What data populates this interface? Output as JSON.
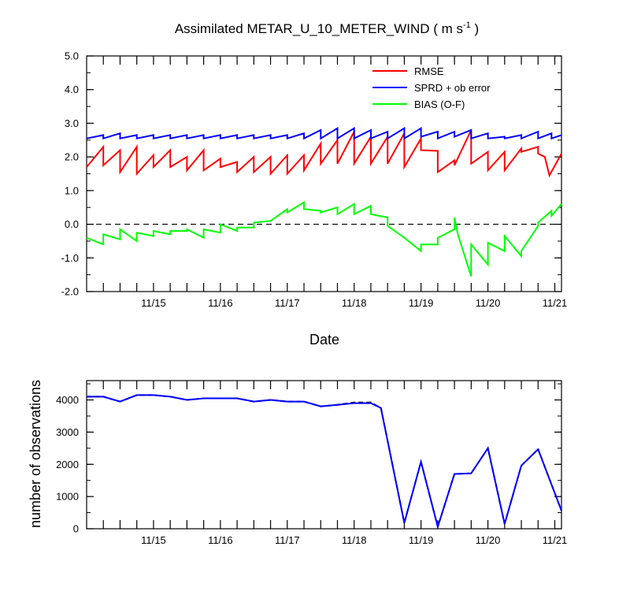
{
  "chart_data": [
    {
      "type": "line",
      "title": "Assimilated METAR_U_10_METER_WIND ( m s",
      "title_superscript": "-1",
      "title_suffix": " )",
      "xlabel": "Date",
      "ylabel": "",
      "ylim": [
        -2.0,
        5.0
      ],
      "y_ticks": [
        "5.0",
        "4.0",
        "3.0",
        "2.0",
        "1.0",
        "0.0",
        "-1.0",
        "-2.0"
      ],
      "y_tick_values": [
        5,
        4,
        3,
        2,
        1,
        0,
        -1,
        -2
      ],
      "x_ticks": [
        "11/15",
        "11/16",
        "11/17",
        "11/18",
        "11/19",
        "11/20",
        "11/21"
      ],
      "x_tick_values": [
        15,
        16,
        17,
        18,
        19,
        20,
        21
      ],
      "x_range": [
        14.0,
        21.1
      ],
      "zero_line": true,
      "legend_position": "top-right",
      "series": [
        {
          "name": "RMSE",
          "color": "#ff0000",
          "points": [
            [
              14.0,
              1.7
            ],
            [
              14.25,
              2.3
            ],
            [
              14.25,
              1.75
            ],
            [
              14.5,
              2.2
            ],
            [
              14.5,
              1.55
            ],
            [
              14.75,
              2.3
            ],
            [
              14.75,
              1.5
            ],
            [
              15.0,
              2.05
            ],
            [
              15.0,
              1.7
            ],
            [
              15.25,
              2.2
            ],
            [
              15.25,
              1.7
            ],
            [
              15.5,
              2.0
            ],
            [
              15.5,
              1.6
            ],
            [
              15.75,
              2.2
            ],
            [
              15.75,
              1.6
            ],
            [
              16.0,
              1.95
            ],
            [
              16.0,
              1.7
            ],
            [
              16.25,
              1.85
            ],
            [
              16.25,
              1.55
            ],
            [
              16.5,
              2.0
            ],
            [
              16.5,
              1.55
            ],
            [
              16.75,
              2.0
            ],
            [
              16.75,
              1.5
            ],
            [
              17.0,
              2.05
            ],
            [
              17.0,
              1.5
            ],
            [
              17.25,
              2.05
            ],
            [
              17.25,
              1.6
            ],
            [
              17.5,
              2.4
            ],
            [
              17.5,
              1.8
            ],
            [
              17.75,
              2.5
            ],
            [
              17.75,
              1.8
            ],
            [
              18.0,
              2.75
            ],
            [
              18.0,
              1.8
            ],
            [
              18.25,
              2.6
            ],
            [
              18.25,
              1.8
            ],
            [
              18.5,
              2.6
            ],
            [
              18.5,
              1.8
            ],
            [
              18.75,
              2.7
            ],
            [
              18.75,
              1.7
            ],
            [
              19.0,
              2.55
            ],
            [
              19.0,
              2.2
            ],
            [
              19.25,
              2.18
            ],
            [
              19.25,
              1.55
            ],
            [
              19.5,
              1.9
            ],
            [
              19.5,
              1.75
            ],
            [
              19.75,
              2.8
            ],
            [
              19.75,
              1.8
            ],
            [
              20.0,
              2.15
            ],
            [
              20.0,
              1.6
            ],
            [
              20.25,
              2.15
            ],
            [
              20.25,
              1.6
            ],
            [
              20.5,
              2.25
            ],
            [
              20.5,
              2.15
            ],
            [
              20.75,
              2.3
            ],
            [
              20.75,
              2.1
            ],
            [
              20.85,
              2.0
            ],
            [
              20.92,
              1.45
            ],
            [
              21.1,
              2.1
            ]
          ]
        },
        {
          "name": "SPRD + ob error",
          "color": "#0000ff",
          "points": [
            [
              14.0,
              2.55
            ],
            [
              14.25,
              2.65
            ],
            [
              14.25,
              2.55
            ],
            [
              14.5,
              2.7
            ],
            [
              14.5,
              2.55
            ],
            [
              14.75,
              2.65
            ],
            [
              14.75,
              2.55
            ],
            [
              15.0,
              2.65
            ],
            [
              15.0,
              2.55
            ],
            [
              15.25,
              2.65
            ],
            [
              15.25,
              2.55
            ],
            [
              15.5,
              2.65
            ],
            [
              15.5,
              2.55
            ],
            [
              15.75,
              2.65
            ],
            [
              15.75,
              2.55
            ],
            [
              16.0,
              2.65
            ],
            [
              16.0,
              2.55
            ],
            [
              16.25,
              2.65
            ],
            [
              16.25,
              2.55
            ],
            [
              16.5,
              2.65
            ],
            [
              16.5,
              2.55
            ],
            [
              16.75,
              2.65
            ],
            [
              16.75,
              2.55
            ],
            [
              17.0,
              2.65
            ],
            [
              17.0,
              2.55
            ],
            [
              17.25,
              2.7
            ],
            [
              17.25,
              2.55
            ],
            [
              17.5,
              2.8
            ],
            [
              17.5,
              2.55
            ],
            [
              17.75,
              2.85
            ],
            [
              17.75,
              2.55
            ],
            [
              18.0,
              2.85
            ],
            [
              18.0,
              2.55
            ],
            [
              18.25,
              2.8
            ],
            [
              18.25,
              2.55
            ],
            [
              18.5,
              2.75
            ],
            [
              18.5,
              2.55
            ],
            [
              18.75,
              2.85
            ],
            [
              18.75,
              2.55
            ],
            [
              19.0,
              2.85
            ],
            [
              19.0,
              2.6
            ],
            [
              19.25,
              2.75
            ],
            [
              19.25,
              2.55
            ],
            [
              19.5,
              2.75
            ],
            [
              19.5,
              2.6
            ],
            [
              19.75,
              2.8
            ],
            [
              19.75,
              2.55
            ],
            [
              20.0,
              2.7
            ],
            [
              20.0,
              2.55
            ],
            [
              20.25,
              2.6
            ],
            [
              20.25,
              2.55
            ],
            [
              20.5,
              2.65
            ],
            [
              20.5,
              2.55
            ],
            [
              20.75,
              2.75
            ],
            [
              20.75,
              2.55
            ],
            [
              20.95,
              2.7
            ],
            [
              20.95,
              2.55
            ],
            [
              21.1,
              2.65
            ]
          ]
        },
        {
          "name": "BIAS (O-F)",
          "color": "#00ff00",
          "points": [
            [
              14.0,
              -0.4
            ],
            [
              14.25,
              -0.6
            ],
            [
              14.25,
              -0.3
            ],
            [
              14.5,
              -0.45
            ],
            [
              14.5,
              -0.15
            ],
            [
              14.75,
              -0.5
            ],
            [
              14.75,
              -0.25
            ],
            [
              15.0,
              -0.35
            ],
            [
              15.0,
              -0.2
            ],
            [
              15.25,
              -0.3
            ],
            [
              15.25,
              -0.2
            ],
            [
              15.5,
              -0.2
            ],
            [
              15.5,
              -0.15
            ],
            [
              15.75,
              -0.4
            ],
            [
              15.75,
              -0.15
            ],
            [
              16.0,
              -0.25
            ],
            [
              16.0,
              0.0
            ],
            [
              16.25,
              -0.2
            ],
            [
              16.25,
              -0.1
            ],
            [
              16.5,
              -0.1
            ],
            [
              16.5,
              0.05
            ],
            [
              16.75,
              0.1
            ],
            [
              16.75,
              0.1
            ],
            [
              17.0,
              0.45
            ],
            [
              17.0,
              0.35
            ],
            [
              17.25,
              0.65
            ],
            [
              17.25,
              0.45
            ],
            [
              17.5,
              0.4
            ],
            [
              17.5,
              0.35
            ],
            [
              17.75,
              0.5
            ],
            [
              17.75,
              0.3
            ],
            [
              18.0,
              0.6
            ],
            [
              18.0,
              0.3
            ],
            [
              18.25,
              0.55
            ],
            [
              18.25,
              0.3
            ],
            [
              18.5,
              0.2
            ],
            [
              18.5,
              -0.05
            ],
            [
              18.75,
              -0.4
            ],
            [
              18.75,
              -0.4
            ],
            [
              19.0,
              -0.8
            ],
            [
              19.0,
              -0.6
            ],
            [
              19.25,
              -0.6
            ],
            [
              19.25,
              -0.4
            ],
            [
              19.5,
              -0.15
            ],
            [
              19.5,
              0.2
            ],
            [
              19.55,
              -0.3
            ],
            [
              19.75,
              -1.55
            ],
            [
              19.75,
              -0.6
            ],
            [
              20.0,
              -1.2
            ],
            [
              20.0,
              -0.55
            ],
            [
              20.25,
              -0.8
            ],
            [
              20.25,
              -0.35
            ],
            [
              20.5,
              -0.95
            ],
            [
              20.5,
              -0.8
            ],
            [
              20.75,
              -0.05
            ],
            [
              20.75,
              0.05
            ],
            [
              20.95,
              0.4
            ],
            [
              20.95,
              0.25
            ],
            [
              21.1,
              0.6
            ]
          ]
        }
      ]
    },
    {
      "type": "line",
      "title": "",
      "xlabel": "",
      "ylabel": "number of observations",
      "ylim": [
        0,
        4600
      ],
      "y_ticks": [
        "4000",
        "3000",
        "2000",
        "1000",
        "0"
      ],
      "y_tick_values": [
        4000,
        3000,
        2000,
        1000,
        0
      ],
      "x_ticks": [
        "11/15",
        "11/16",
        "11/17",
        "11/18",
        "11/19",
        "11/20",
        "11/21"
      ],
      "x_tick_values": [
        15,
        16,
        17,
        18,
        19,
        20,
        21
      ],
      "x_range": [
        14.0,
        21.1
      ],
      "series": [
        {
          "name": "",
          "color": "#000000",
          "dashed": true,
          "points": [
            [
              14.0,
              4100
            ],
            [
              14.25,
              4100
            ],
            [
              14.5,
              3950
            ],
            [
              14.75,
              4150
            ],
            [
              15.0,
              4150
            ],
            [
              15.25,
              4100
            ],
            [
              15.5,
              4000
            ],
            [
              15.75,
              4050
            ],
            [
              16.0,
              4050
            ],
            [
              16.25,
              4050
            ],
            [
              16.5,
              3950
            ],
            [
              16.75,
              4000
            ],
            [
              17.0,
              3950
            ],
            [
              17.25,
              3950
            ],
            [
              17.5,
              3800
            ],
            [
              17.75,
              3850
            ],
            [
              18.0,
              3920
            ],
            [
              18.25,
              3920
            ],
            [
              18.4,
              3750
            ],
            [
              18.75,
              180
            ],
            [
              19.0,
              2080
            ],
            [
              19.25,
              60
            ],
            [
              19.5,
              1700
            ],
            [
              19.75,
              1720
            ],
            [
              20.0,
              2500
            ],
            [
              20.25,
              150
            ],
            [
              20.5,
              1960
            ],
            [
              20.75,
              2470
            ],
            [
              21.1,
              560
            ]
          ]
        },
        {
          "name": "",
          "color": "#0000ff",
          "dashed": false,
          "points": [
            [
              14.0,
              4100
            ],
            [
              14.25,
              4100
            ],
            [
              14.5,
              3950
            ],
            [
              14.75,
              4150
            ],
            [
              15.0,
              4150
            ],
            [
              15.25,
              4100
            ],
            [
              15.5,
              4000
            ],
            [
              15.75,
              4050
            ],
            [
              16.0,
              4050
            ],
            [
              16.25,
              4050
            ],
            [
              16.5,
              3950
            ],
            [
              16.75,
              4000
            ],
            [
              17.0,
              3950
            ],
            [
              17.25,
              3950
            ],
            [
              17.5,
              3800
            ],
            [
              17.75,
              3850
            ],
            [
              18.0,
              3900
            ],
            [
              18.25,
              3900
            ],
            [
              18.4,
              3750
            ],
            [
              18.75,
              180
            ],
            [
              19.0,
              2080
            ],
            [
              19.25,
              60
            ],
            [
              19.5,
              1700
            ],
            [
              19.75,
              1720
            ],
            [
              20.0,
              2500
            ],
            [
              20.25,
              150
            ],
            [
              20.5,
              1960
            ],
            [
              20.75,
              2470
            ],
            [
              21.1,
              560
            ]
          ]
        }
      ]
    }
  ]
}
